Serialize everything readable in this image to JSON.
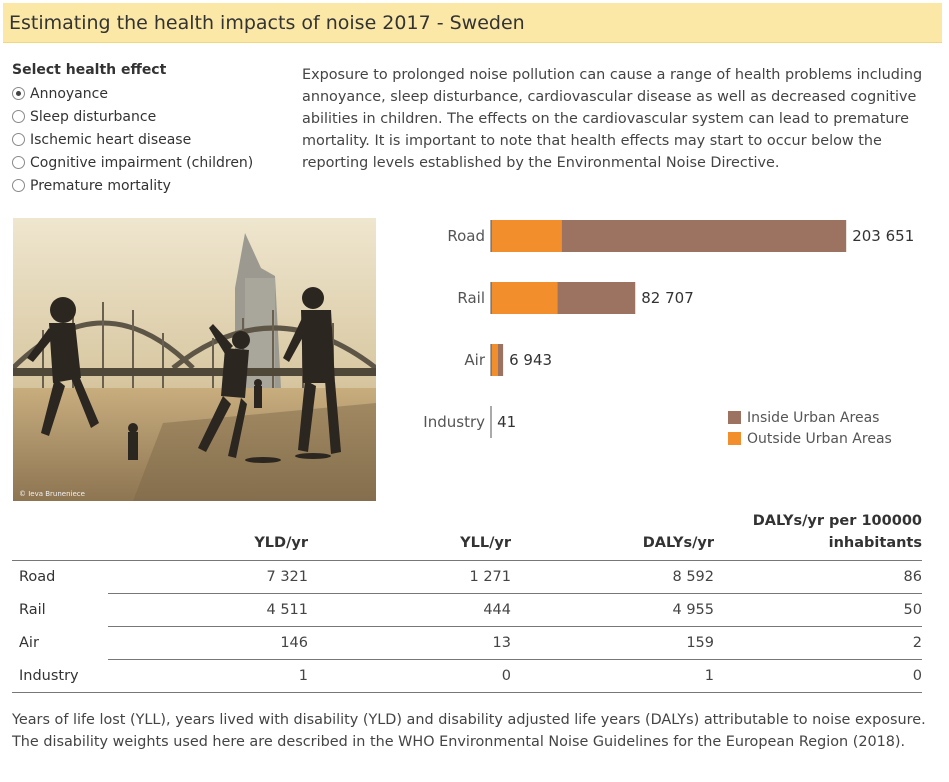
{
  "title": "Estimating the health impacts of noise 2017 - Sweden",
  "selector": {
    "heading": "Select health effect",
    "options": [
      {
        "label": "Annoyance",
        "selected": true
      },
      {
        "label": "Sleep disturbance",
        "selected": false
      },
      {
        "label": "Ischemic heart disease",
        "selected": false
      },
      {
        "label": "Cognitive impairment (children)",
        "selected": false
      },
      {
        "label": "Premature mortality",
        "selected": false
      }
    ]
  },
  "description": "Exposure to prolonged noise pollution can cause a range of health problems including annoyance, sleep disturbance, cardiovascular disease as well as decreased cognitive abilities in children.  The effects on the cardiovascular system can lead to premature mortality. It is important to note that health effects may start to occur below the reporting levels established by the Environmental Noise Directive.",
  "photo": {
    "credit": "© Ieva Bruneniece"
  },
  "chart_data": {
    "type": "bar",
    "orientation": "horizontal",
    "stacked": true,
    "categories": [
      "Road",
      "Rail",
      "Air",
      "Industry"
    ],
    "series": [
      {
        "name": "Outside Urban Areas",
        "color": "#f28e2b",
        "values": [
          40500,
          38000,
          4000,
          0
        ]
      },
      {
        "name": "Inside Urban Areas",
        "color": "#9c7360",
        "values": [
          163151,
          44707,
          2943,
          41
        ]
      }
    ],
    "total_labels": [
      "203 651",
      "82 707",
      "6 943",
      "41"
    ],
    "totals": [
      203651,
      82707,
      6943,
      41
    ],
    "xlim": [
      0,
      215000
    ],
    "legend_position": "bottom-right",
    "grid": false
  },
  "legend": {
    "inside_label": "Inside Urban Areas",
    "inside_color": "#9c7360",
    "outside_label": "Outside Urban Areas",
    "outside_color": "#f28e2b"
  },
  "table": {
    "headers": [
      "YLD/yr",
      "YLL/yr",
      "DALYs/yr",
      "DALYs/yr per 100000 inhabitants"
    ],
    "rows": [
      {
        "label": "Road",
        "values": [
          "7 321",
          "1 271",
          "8 592",
          "86"
        ]
      },
      {
        "label": "Rail",
        "values": [
          "4 511",
          "444",
          "4 955",
          "50"
        ]
      },
      {
        "label": "Air",
        "values": [
          "146",
          "13",
          "159",
          "2"
        ]
      },
      {
        "label": "Industry",
        "values": [
          "1",
          "0",
          "1",
          "0"
        ]
      }
    ]
  },
  "footnote": "Years of life lost (YLL), years lived with disability (YLD) and disability adjusted life years (DALYs) attributable to noise exposure. The disability weights used here are described in the WHO Environmental Noise Guidelines for the European Region (2018)."
}
